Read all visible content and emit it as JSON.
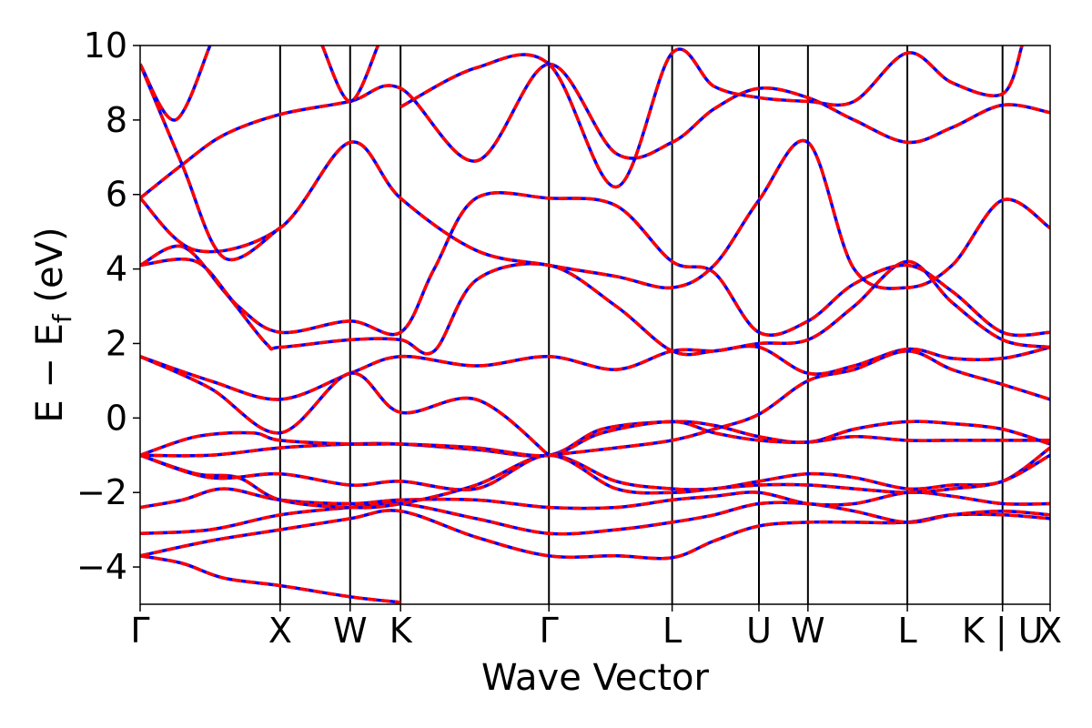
{
  "chart_data": {
    "type": "line",
    "title": "",
    "xlabel": "Wave Vector",
    "ylabel": "E − E",
    "ylabel_subscript": "f",
    "ylabel_unit": " (eV)",
    "ylim": [
      -5,
      10
    ],
    "yticks": [
      {
        "value": -4,
        "label": "−4"
      },
      {
        "value": -2,
        "label": "−2"
      },
      {
        "value": 0,
        "label": "0"
      },
      {
        "value": 2,
        "label": "2"
      },
      {
        "value": 4,
        "label": "4"
      },
      {
        "value": 6,
        "label": "6"
      },
      {
        "value": 8,
        "label": "8"
      },
      {
        "value": 10,
        "label": "10"
      }
    ],
    "xlim": [
      0,
      6.5
    ],
    "xticks": [
      {
        "pos": 0.0,
        "label": "Γ"
      },
      {
        "pos": 1.0,
        "label": "X"
      },
      {
        "pos": 1.5,
        "label": "W"
      },
      {
        "pos": 1.86,
        "label": "K"
      },
      {
        "pos": 2.92,
        "label": "Γ"
      },
      {
        "pos": 3.8,
        "label": "L"
      },
      {
        "pos": 4.42,
        "label": "U"
      },
      {
        "pos": 4.77,
        "label": "W"
      },
      {
        "pos": 5.48,
        "label": "L"
      },
      {
        "pos": 6.16,
        "label": "K | U"
      },
      {
        "pos": 6.5,
        "label": "X"
      }
    ],
    "colors": {
      "solid": "#ff0000",
      "dashed": "#0000ff",
      "vline": "#000000"
    },
    "series": [
      {
        "values": [
          [
            0,
            -3.7
          ],
          [
            0.3,
            -3.9
          ],
          [
            0.6,
            -4.3
          ],
          [
            1.0,
            -4.5
          ],
          [
            1.5,
            -4.8
          ],
          [
            1.86,
            -4.95
          ]
        ]
      },
      {
        "values": [
          [
            0,
            -3.7
          ],
          [
            0.5,
            -3.3
          ],
          [
            1.0,
            -3.0
          ],
          [
            1.5,
            -2.7
          ],
          [
            1.86,
            -2.5
          ],
          [
            2.4,
            -3.2
          ],
          [
            2.92,
            -3.7
          ],
          [
            3.4,
            -3.7
          ],
          [
            3.8,
            -3.75
          ],
          [
            4.1,
            -3.3
          ],
          [
            4.42,
            -2.9
          ],
          [
            4.77,
            -2.8
          ],
          [
            5.1,
            -2.8
          ],
          [
            5.48,
            -2.8
          ],
          [
            5.8,
            -2.6
          ],
          [
            6.16,
            -2.6
          ],
          [
            6.5,
            -2.7
          ]
        ]
      },
      {
        "values": [
          [
            0,
            -3.1
          ],
          [
            0.5,
            -3.0
          ],
          [
            1.0,
            -2.6
          ],
          [
            1.5,
            -2.4
          ],
          [
            1.86,
            -2.3
          ],
          [
            2.4,
            -2.7
          ],
          [
            2.92,
            -3.1
          ],
          [
            3.4,
            -3.0
          ],
          [
            3.8,
            -2.8
          ],
          [
            4.1,
            -2.6
          ],
          [
            4.42,
            -2.3
          ],
          [
            4.77,
            -2.3
          ],
          [
            5.1,
            -2.5
          ],
          [
            5.48,
            -2.8
          ],
          [
            5.8,
            -2.6
          ],
          [
            6.16,
            -2.5
          ],
          [
            6.5,
            -2.6
          ]
        ]
      },
      {
        "values": [
          [
            0,
            -2.4
          ],
          [
            0.3,
            -2.2
          ],
          [
            0.6,
            -1.9
          ],
          [
            1.0,
            -2.2
          ],
          [
            1.5,
            -2.3
          ],
          [
            1.86,
            -2.2
          ],
          [
            2.4,
            -2.2
          ],
          [
            2.92,
            -2.4
          ],
          [
            3.4,
            -2.4
          ],
          [
            3.8,
            -2.2
          ],
          [
            4.1,
            -2.1
          ],
          [
            4.42,
            -2.0
          ],
          [
            4.77,
            -2.3
          ],
          [
            5.1,
            -2.3
          ],
          [
            5.48,
            -2.0
          ],
          [
            5.8,
            -2.1
          ],
          [
            6.16,
            -2.3
          ],
          [
            6.5,
            -2.3
          ]
        ]
      },
      {
        "values": [
          [
            0,
            -1.0
          ],
          [
            0.4,
            -1.5
          ],
          [
            0.7,
            -1.6
          ],
          [
            1.0,
            -2.2
          ],
          [
            1.5,
            -2.4
          ],
          [
            1.86,
            -2.3
          ],
          [
            2.4,
            -1.8
          ],
          [
            2.92,
            -1.0
          ],
          [
            3.4,
            -1.7
          ],
          [
            3.8,
            -1.9
          ],
          [
            4.1,
            -1.9
          ],
          [
            4.42,
            -1.7
          ],
          [
            4.77,
            -1.5
          ],
          [
            5.1,
            -1.6
          ],
          [
            5.48,
            -1.9
          ],
          [
            5.8,
            -1.8
          ],
          [
            6.16,
            -1.7
          ],
          [
            6.5,
            -0.8
          ]
        ]
      },
      {
        "values": [
          [
            0,
            -1.0
          ],
          [
            0.5,
            -1.6
          ],
          [
            1.0,
            -1.5
          ],
          [
            1.5,
            -1.8
          ],
          [
            1.86,
            -1.7
          ],
          [
            2.4,
            -1.9
          ],
          [
            2.92,
            -1.0
          ],
          [
            3.4,
            -1.9
          ],
          [
            3.8,
            -2.0
          ],
          [
            4.1,
            -1.9
          ],
          [
            4.42,
            -1.8
          ],
          [
            4.77,
            -1.8
          ],
          [
            5.1,
            -1.9
          ],
          [
            5.48,
            -2.0
          ],
          [
            5.8,
            -1.9
          ],
          [
            6.16,
            -1.7
          ],
          [
            6.5,
            -1.0
          ]
        ]
      },
      {
        "values": [
          [
            0,
            -1.0
          ],
          [
            0.5,
            -1.0
          ],
          [
            1.0,
            -0.8
          ],
          [
            1.5,
            -0.7
          ],
          [
            1.86,
            -0.7
          ],
          [
            2.4,
            -0.85
          ],
          [
            2.92,
            -1.0
          ],
          [
            3.3,
            -0.3
          ],
          [
            3.8,
            -0.1
          ],
          [
            4.1,
            -0.2
          ],
          [
            4.42,
            -0.5
          ],
          [
            4.77,
            -0.65
          ],
          [
            5.1,
            -0.3
          ],
          [
            5.48,
            -0.1
          ],
          [
            5.8,
            -0.15
          ],
          [
            6.16,
            -0.3
          ],
          [
            6.5,
            -0.7
          ]
        ]
      },
      {
        "values": [
          [
            0,
            -1.0
          ],
          [
            0.4,
            -0.5
          ],
          [
            0.8,
            -0.4
          ],
          [
            1.0,
            -0.6
          ],
          [
            1.5,
            -0.7
          ],
          [
            1.86,
            -0.7
          ],
          [
            2.4,
            -0.8
          ],
          [
            2.92,
            -1.0
          ],
          [
            3.3,
            -0.4
          ],
          [
            3.8,
            -0.1
          ],
          [
            4.1,
            -0.4
          ],
          [
            4.42,
            -0.6
          ],
          [
            4.77,
            -0.65
          ],
          [
            5.1,
            -0.5
          ],
          [
            5.48,
            -0.6
          ],
          [
            5.8,
            -0.6
          ],
          [
            6.16,
            -0.6
          ],
          [
            6.5,
            -0.6
          ]
        ]
      },
      {
        "values": [
          [
            0,
            1.65
          ],
          [
            0.5,
            1.0
          ],
          [
            1.0,
            0.5
          ],
          [
            1.5,
            1.2
          ],
          [
            1.86,
            1.65
          ],
          [
            2.4,
            1.4
          ],
          [
            2.92,
            1.65
          ],
          [
            3.4,
            1.3
          ],
          [
            3.8,
            1.8
          ],
          [
            4.1,
            1.8
          ],
          [
            4.42,
            1.9
          ],
          [
            4.77,
            1.2
          ],
          [
            5.1,
            1.4
          ],
          [
            5.48,
            1.85
          ],
          [
            5.8,
            1.6
          ],
          [
            6.16,
            1.6
          ],
          [
            6.5,
            1.9
          ]
        ]
      },
      {
        "values": [
          [
            0,
            1.65
          ],
          [
            0.5,
            0.8
          ],
          [
            1.0,
            -0.4
          ],
          [
            1.5,
            1.2
          ],
          [
            1.86,
            0.15
          ],
          [
            2.4,
            0.5
          ],
          [
            2.92,
            -1.0
          ]
        ]
      },
      {
        "values": [
          [
            2.92,
            -1.0
          ],
          [
            3.4,
            -0.8
          ],
          [
            3.8,
            -0.6
          ],
          [
            4.1,
            -0.3
          ],
          [
            4.42,
            0.1
          ],
          [
            4.77,
            1.0
          ],
          [
            5.1,
            1.3
          ],
          [
            5.48,
            1.8
          ],
          [
            5.8,
            1.3
          ],
          [
            6.16,
            0.9
          ],
          [
            6.5,
            0.5
          ]
        ]
      },
      {
        "values": [
          [
            0,
            4.1
          ],
          [
            0.3,
            4.6
          ],
          [
            0.6,
            3.4
          ],
          [
            0.9,
            2.0
          ],
          [
            1.0,
            1.9
          ],
          [
            1.5,
            2.1
          ],
          [
            1.86,
            2.1
          ],
          [
            2.1,
            1.8
          ],
          [
            2.4,
            3.7
          ],
          [
            2.92,
            4.1
          ],
          [
            3.4,
            3.0
          ],
          [
            3.8,
            1.8
          ],
          [
            4.1,
            1.8
          ],
          [
            4.42,
            2.0
          ],
          [
            4.77,
            2.1
          ],
          [
            5.1,
            3.0
          ],
          [
            5.48,
            4.2
          ],
          [
            5.8,
            3.1
          ],
          [
            6.16,
            2.1
          ],
          [
            6.5,
            1.9
          ]
        ]
      },
      {
        "values": [
          [
            0,
            4.1
          ],
          [
            0.4,
            4.2
          ],
          [
            0.7,
            3.0
          ],
          [
            1.0,
            2.3
          ],
          [
            1.5,
            2.6
          ],
          [
            1.86,
            2.3
          ],
          [
            2.1,
            4.0
          ],
          [
            2.4,
            5.9
          ],
          [
            2.92,
            5.9
          ],
          [
            3.4,
            5.7
          ],
          [
            3.8,
            4.2
          ],
          [
            4.1,
            3.9
          ],
          [
            4.42,
            2.3
          ],
          [
            4.77,
            2.6
          ],
          [
            5.1,
            3.6
          ],
          [
            5.48,
            4.1
          ],
          [
            5.8,
            3.4
          ],
          [
            6.16,
            2.3
          ],
          [
            6.5,
            2.3
          ]
        ]
      },
      {
        "values": [
          [
            0,
            5.9
          ],
          [
            0.4,
            4.5
          ],
          [
            1.0,
            5.1
          ],
          [
            1.5,
            7.4
          ],
          [
            1.86,
            5.9
          ],
          [
            2.4,
            4.5
          ],
          [
            2.92,
            4.1
          ],
          [
            3.4,
            3.8
          ],
          [
            3.8,
            3.5
          ],
          [
            4.1,
            4.1
          ],
          [
            4.42,
            5.85
          ],
          [
            4.77,
            7.4
          ],
          [
            5.1,
            4.0
          ],
          [
            5.48,
            3.5
          ],
          [
            5.8,
            4.1
          ],
          [
            6.16,
            5.85
          ],
          [
            6.5,
            5.1
          ]
        ]
      },
      {
        "values": [
          [
            0,
            5.9
          ],
          [
            0.3,
            6.8
          ],
          [
            0.6,
            7.6
          ],
          [
            1.0,
            8.15
          ],
          [
            1.5,
            8.5
          ],
          [
            1.86,
            8.85
          ],
          [
            2.4,
            6.9
          ],
          [
            2.92,
            9.5
          ],
          [
            3.4,
            7.1
          ],
          [
            3.8,
            7.4
          ],
          [
            4.1,
            8.3
          ],
          [
            4.42,
            8.85
          ],
          [
            4.77,
            8.6
          ],
          [
            5.1,
            8.0
          ],
          [
            5.48,
            7.4
          ],
          [
            5.8,
            7.8
          ],
          [
            6.16,
            8.4
          ],
          [
            6.5,
            8.2
          ]
        ]
      },
      {
        "values": [
          [
            0,
            9.5
          ],
          [
            0.3,
            6.8
          ],
          [
            0.6,
            4.3
          ],
          [
            1.0,
            5.1
          ]
        ]
      },
      {
        "values": [
          [
            0,
            9.5
          ],
          [
            0.25,
            8.0
          ],
          [
            0.5,
            10.0
          ]
        ]
      },
      {
        "values": [
          [
            1.3,
            10.0
          ],
          [
            1.5,
            8.5
          ],
          [
            1.7,
            10.0
          ]
        ]
      },
      {
        "values": [
          [
            1.86,
            8.35
          ],
          [
            2.4,
            9.4
          ],
          [
            2.92,
            9.5
          ],
          [
            3.4,
            6.2
          ],
          [
            3.8,
            9.8
          ],
          [
            4.1,
            8.9
          ],
          [
            4.42,
            8.6
          ],
          [
            4.77,
            8.5
          ],
          [
            5.1,
            8.5
          ],
          [
            5.48,
            9.8
          ],
          [
            5.8,
            9.0
          ],
          [
            6.16,
            8.7
          ],
          [
            6.3,
            10.0
          ]
        ]
      }
    ]
  }
}
